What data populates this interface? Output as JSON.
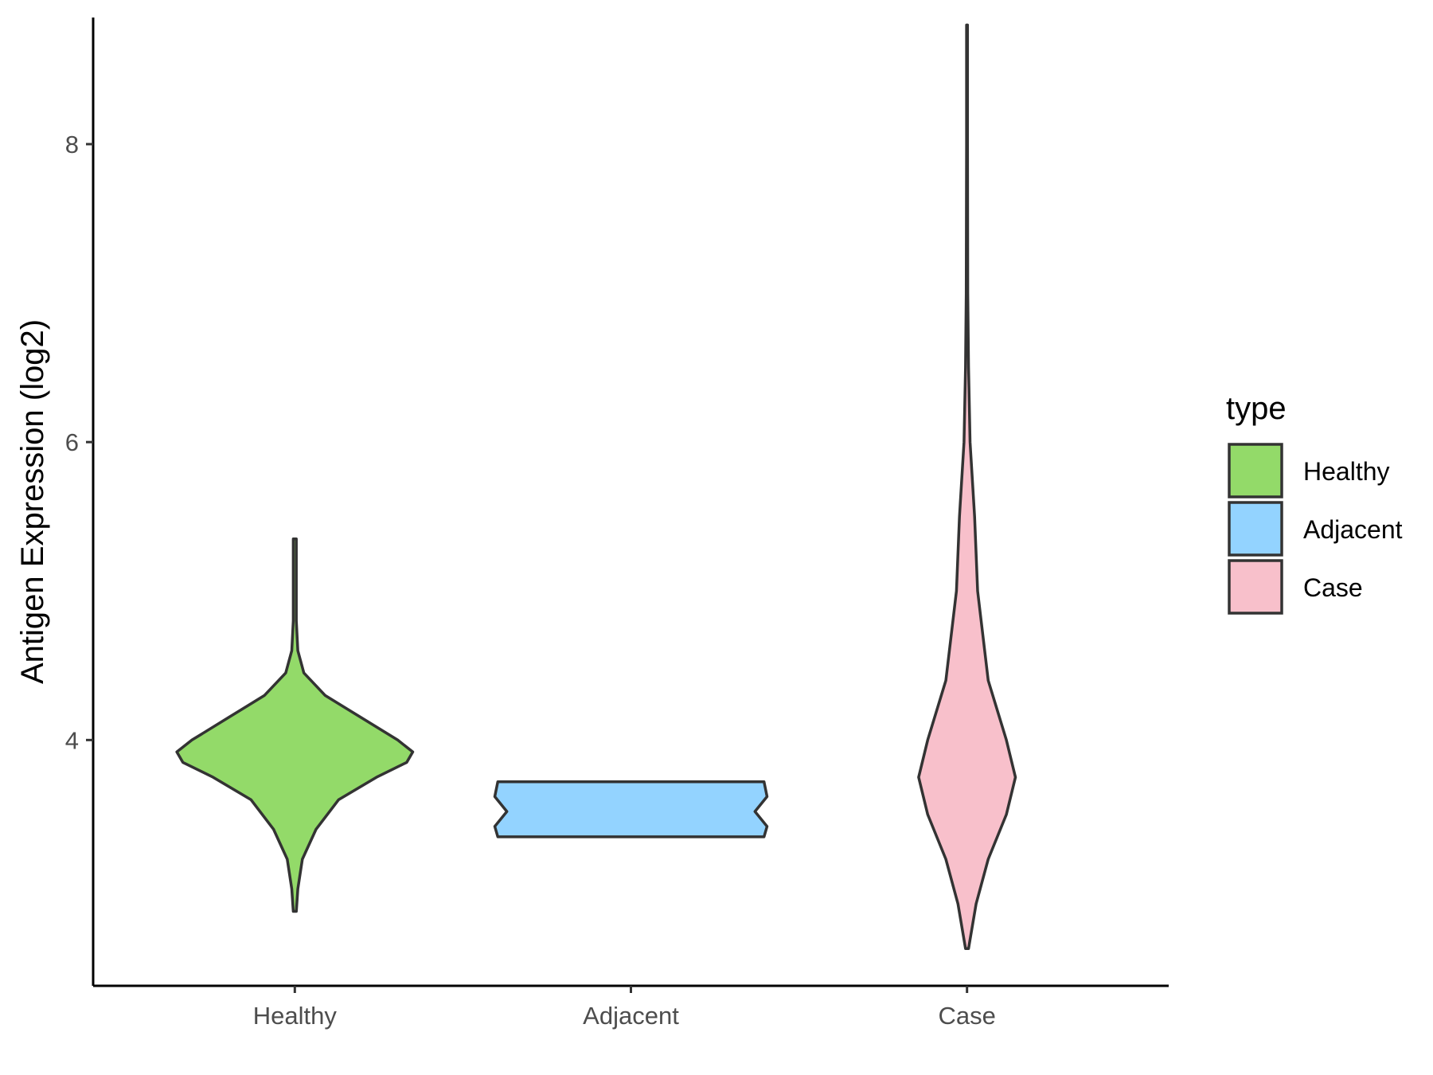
{
  "chart_data": {
    "type": "violin",
    "title": "",
    "xlabel": "",
    "ylabel": "Antigen Expression (log2)",
    "ylim": [
      2.35,
      8.85
    ],
    "yticks": [
      4,
      6,
      8
    ],
    "categories": [
      "Healthy",
      "Adjacent",
      "Case"
    ],
    "grid": false,
    "legend": {
      "title": "type",
      "position": "right",
      "items": [
        {
          "label": "Healthy",
          "color": "#93DA69"
        },
        {
          "label": "Adjacent",
          "color": "#93D3FF"
        },
        {
          "label": "Case",
          "color": "#F8C0CB"
        }
      ]
    },
    "series": [
      {
        "name": "Healthy",
        "color": "#93DA69",
        "density": [
          {
            "y": 2.85,
            "w": 0.01
          },
          {
            "y": 3.0,
            "w": 0.02
          },
          {
            "y": 3.2,
            "w": 0.05
          },
          {
            "y": 3.4,
            "w": 0.14
          },
          {
            "y": 3.6,
            "w": 0.29
          },
          {
            "y": 3.75,
            "w": 0.54
          },
          {
            "y": 3.85,
            "w": 0.74
          },
          {
            "y": 3.92,
            "w": 0.78
          },
          {
            "y": 4.0,
            "w": 0.68
          },
          {
            "y": 4.15,
            "w": 0.44
          },
          {
            "y": 4.3,
            "w": 0.2
          },
          {
            "y": 4.45,
            "w": 0.06
          },
          {
            "y": 4.6,
            "w": 0.02
          },
          {
            "y": 4.8,
            "w": 0.01
          },
          {
            "y": 5.0,
            "w": 0.01
          },
          {
            "y": 5.2,
            "w": 0.01
          },
          {
            "y": 5.35,
            "w": 0.01
          }
        ]
      },
      {
        "name": "Adjacent",
        "color": "#93D3FF",
        "density": [
          {
            "y": 3.35,
            "w": 0.88
          },
          {
            "y": 3.42,
            "w": 0.9
          },
          {
            "y": 3.52,
            "w": 0.82
          },
          {
            "y": 3.62,
            "w": 0.9
          },
          {
            "y": 3.72,
            "w": 0.88
          }
        ]
      },
      {
        "name": "Case",
        "color": "#F8C0CB",
        "density": [
          {
            "y": 2.6,
            "w": 0.01
          },
          {
            "y": 2.9,
            "w": 0.06
          },
          {
            "y": 3.2,
            "w": 0.14
          },
          {
            "y": 3.5,
            "w": 0.26
          },
          {
            "y": 3.75,
            "w": 0.32
          },
          {
            "y": 4.0,
            "w": 0.26
          },
          {
            "y": 4.4,
            "w": 0.14
          },
          {
            "y": 5.0,
            "w": 0.07
          },
          {
            "y": 5.5,
            "w": 0.05
          },
          {
            "y": 6.0,
            "w": 0.02
          },
          {
            "y": 6.5,
            "w": 0.01
          },
          {
            "y": 7.0,
            "w": 0.005
          },
          {
            "y": 8.0,
            "w": 0.003
          },
          {
            "y": 8.8,
            "w": 0.003
          }
        ]
      }
    ]
  }
}
